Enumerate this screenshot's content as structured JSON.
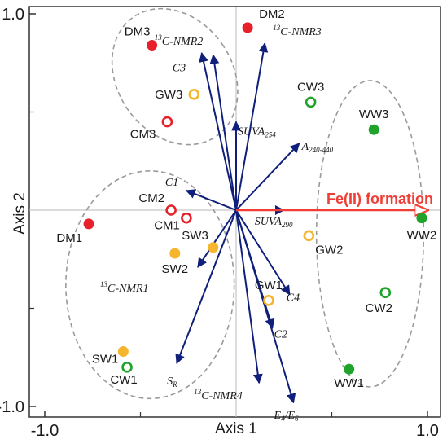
{
  "chart_data": {
    "type": "scatter",
    "xlabel": "Axis 1",
    "ylabel": "Axis 2",
    "xlim": [
      -1.1,
      1.02
    ],
    "ylim": [
      -1.1,
      1.02
    ],
    "x_ticks": [
      {
        "value": -1.0,
        "label": "-1.0"
      },
      {
        "value": 1.0,
        "label": "1.0"
      }
    ],
    "y_ticks": [
      {
        "value": 1.0,
        "label": "1.0"
      },
      {
        "value": -1.0,
        "label": "-1.0"
      }
    ],
    "minor_ticks": [
      -0.5,
      0.5
    ],
    "colors": {
      "red": "#e8202a",
      "orange": "#f5b52e",
      "green": "#1fa32a",
      "vector": "#0f1f7a",
      "fe_vector": "#ef3e36",
      "ellipse": "#9a9a9a",
      "crosshair": "#b8b8b8"
    },
    "points": [
      {
        "label": "DM2",
        "x": 0.06,
        "y": 0.93,
        "color": "red",
        "filled": true
      },
      {
        "label": "DM3",
        "x": -0.44,
        "y": 0.84,
        "color": "red",
        "filled": true
      },
      {
        "label": "GW3",
        "x": -0.22,
        "y": 0.59,
        "color": "orange",
        "filled": false
      },
      {
        "label": "CM3",
        "x": -0.36,
        "y": 0.45,
        "color": "red",
        "filled": false
      },
      {
        "label": "CW3",
        "x": 0.39,
        "y": 0.55,
        "color": "green",
        "filled": false
      },
      {
        "label": "WW3",
        "x": 0.72,
        "y": 0.41,
        "color": "green",
        "filled": true
      },
      {
        "label": "CM2",
        "x": -0.34,
        "y": 0.0,
        "color": "red",
        "filled": false
      },
      {
        "label": "CM1",
        "x": -0.26,
        "y": -0.04,
        "color": "red",
        "filled": false
      },
      {
        "label": "DM1",
        "x": -0.77,
        "y": -0.07,
        "color": "red",
        "filled": true
      },
      {
        "label": "WW2",
        "x": 0.97,
        "y": -0.04,
        "color": "green",
        "filled": true
      },
      {
        "label": "SW3",
        "x": -0.12,
        "y": -0.19,
        "color": "orange",
        "filled": true
      },
      {
        "label": "SW2",
        "x": -0.32,
        "y": -0.22,
        "color": "orange",
        "filled": true
      },
      {
        "label": "GW2",
        "x": 0.38,
        "y": -0.13,
        "color": "orange",
        "filled": false
      },
      {
        "label": "CW2",
        "x": 0.78,
        "y": -0.42,
        "color": "green",
        "filled": false
      },
      {
        "label": "GW1",
        "x": 0.17,
        "y": -0.46,
        "color": "orange",
        "filled": false
      },
      {
        "label": "SW1",
        "x": -0.59,
        "y": -0.72,
        "color": "orange",
        "filled": true
      },
      {
        "label": "CW1",
        "x": -0.57,
        "y": -0.8,
        "color": "green",
        "filled": false
      },
      {
        "label": "WW1",
        "x": 0.59,
        "y": -0.81,
        "color": "green",
        "filled": true
      }
    ],
    "vectors": [
      {
        "label": "SUVA254",
        "base": "SUVA",
        "sub": "254",
        "x": 0.0,
        "y": 0.45
      },
      {
        "label": "C1",
        "base": "C1",
        "sub": "",
        "x": -0.26,
        "y": 0.1
      },
      {
        "label": "13C-NMR2",
        "base": "C-NMR2",
        "sup": "13",
        "sub": "",
        "x": -0.18,
        "y": 0.8
      },
      {
        "label": "C3",
        "base": "C3",
        "sub": "",
        "x": -0.12,
        "y": 0.79
      },
      {
        "label": "13C-NMR3",
        "base": "C-NMR3",
        "sup": "13",
        "sub": "",
        "x": 0.15,
        "y": 0.85
      },
      {
        "label": "A240-440",
        "base": "A",
        "sub": "240-440",
        "x": 0.33,
        "y": 0.34
      },
      {
        "label": "SUVA290",
        "base": "SUVA",
        "sub": "290",
        "x": 0.25,
        "y": 0.0
      },
      {
        "label": "13C-NMR1",
        "base": "C-NMR1",
        "sup": "13",
        "sub": "",
        "x": -0.2,
        "y": -0.29
      },
      {
        "label": "SR",
        "base": "S",
        "sub": "R",
        "x": -0.31,
        "y": -0.78
      },
      {
        "label": "13C-NMR4",
        "base": "C-NMR4",
        "sup": "13",
        "sub": "",
        "x": 0.12,
        "y": -0.88
      },
      {
        "label": "C2",
        "base": "C2",
        "sub": "",
        "x": 0.19,
        "y": -0.6
      },
      {
        "label": "C4",
        "base": "C4",
        "sub": "",
        "x": 0.28,
        "y": -0.43
      },
      {
        "label": "E4/E6",
        "base": "E",
        "sub": "4",
        "base2": "/E",
        "sub2": "6",
        "x": 0.3,
        "y": -0.98
      }
    ],
    "fe_vector": {
      "label": "Fe(II) formation",
      "x": 1.0,
      "y": 0.0
    },
    "clusters": [
      {
        "name": "DM-GW3-CM3",
        "cx": -0.32,
        "cy": 0.68,
        "rx": 0.3,
        "ry": 0.37,
        "rotation": -35
      },
      {
        "name": "right-group",
        "cx": 0.7,
        "cy": -0.12,
        "rx": 0.28,
        "ry": 0.78,
        "rotation": 0
      },
      {
        "name": "left-group",
        "cx": -0.45,
        "cy": -0.38,
        "rx": 0.44,
        "ry": 0.58,
        "rotation": 0
      }
    ]
  }
}
